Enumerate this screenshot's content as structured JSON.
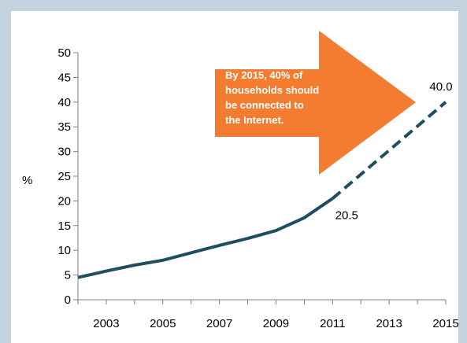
{
  "chart_data": {
    "type": "line",
    "ylabel": "%",
    "ylim": [
      0,
      50
    ],
    "yticks": [
      0,
      5,
      10,
      15,
      20,
      25,
      30,
      35,
      40,
      45,
      50
    ],
    "xlim": [
      2002,
      2015
    ],
    "xticks": [
      2003,
      2005,
      2007,
      2009,
      2011,
      2013,
      2015
    ],
    "grid": false,
    "series": [
      {
        "style": "solid",
        "color": "#1f4e5f",
        "x": [
          2002,
          2003,
          2004,
          2005,
          2006,
          2007,
          2008,
          2009,
          2010,
          2011
        ],
        "values": [
          4.5,
          5.8,
          7.0,
          8.0,
          9.5,
          11.0,
          12.4,
          14.0,
          16.6,
          20.5
        ]
      },
      {
        "style": "dashed",
        "color": "#1f4e5f",
        "x": [
          2011,
          2015
        ],
        "values": [
          20.5,
          40.0
        ]
      }
    ],
    "data_labels": [
      {
        "x": 2011,
        "y": 20.5,
        "text": "20.5"
      },
      {
        "x": 2015,
        "y": 40.0,
        "text": "40.0"
      }
    ],
    "annotation": {
      "color": "#f47c30",
      "lines": [
        "By 2015, 40% of",
        "households should",
        "be connected to",
        "the Internet."
      ]
    }
  }
}
